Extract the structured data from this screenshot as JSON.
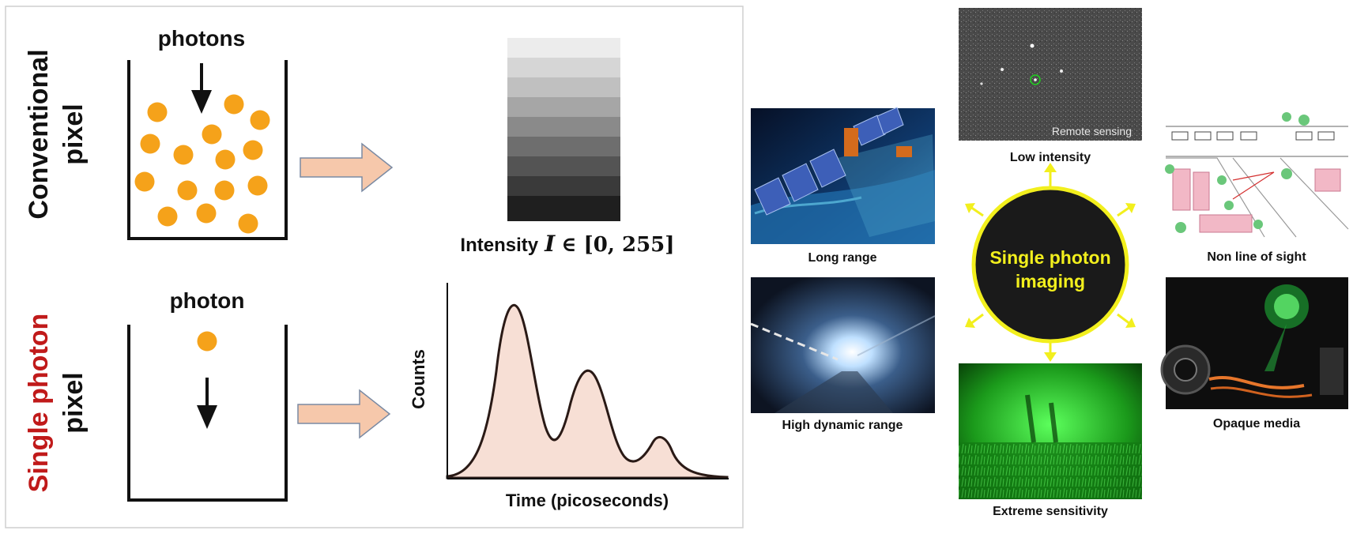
{
  "left_panel": {
    "conventional": {
      "label_line1": "Conventional",
      "label_line2": "pixel",
      "bucket_label": "photons",
      "output_label_text": "Intensity",
      "output_label_var": "I",
      "output_label_rest": "∈ [0, 255]"
    },
    "single_photon": {
      "label_line1": "Single photon",
      "label_line2": "pixel",
      "bucket_label": "photon",
      "chart_ylabel": "Counts",
      "chart_xlabel": "Time (picoseconds)"
    }
  },
  "right_panel": {
    "center_label_line1": "Single photon",
    "center_label_line2": "imaging",
    "applications": [
      {
        "caption": "Long range"
      },
      {
        "caption": "High dynamic range"
      },
      {
        "caption": "Low intensity",
        "inset_text": "Remote sensing"
      },
      {
        "caption": "Extreme sensitivity"
      },
      {
        "caption": "Non line of sight"
      },
      {
        "caption": "Opaque media"
      }
    ]
  },
  "colors": {
    "photon": "#f5a21a",
    "arrow_fill": "#f6c8ab",
    "arrow_stroke": "#7a8aa3",
    "histogram_fill": "#f7dfd5",
    "accent_red": "#c01a1a",
    "hub_ring": "#f2ef1d",
    "hub_fill": "#1a1a1a"
  }
}
